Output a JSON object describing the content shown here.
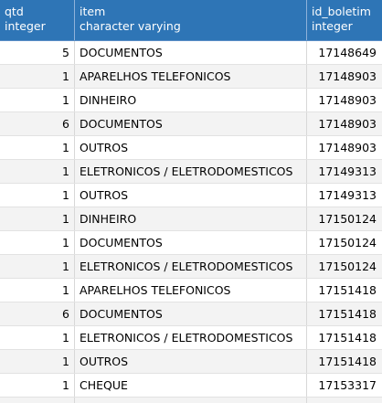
{
  "columns": [
    {
      "name": "qtd",
      "type": "integer"
    },
    {
      "name": "item",
      "type": "character varying"
    },
    {
      "name": "id_boletim",
      "type": "integer"
    }
  ],
  "rows": [
    {
      "qtd": "5",
      "item": "DOCUMENTOS",
      "id_boletim": "17148649"
    },
    {
      "qtd": "1",
      "item": "APARELHOS TELEFONICOS",
      "id_boletim": "17148903"
    },
    {
      "qtd": "1",
      "item": "DINHEIRO",
      "id_boletim": "17148903"
    },
    {
      "qtd": "6",
      "item": "DOCUMENTOS",
      "id_boletim": "17148903"
    },
    {
      "qtd": "1",
      "item": "OUTROS",
      "id_boletim": "17148903"
    },
    {
      "qtd": "1",
      "item": "ELETRONICOS / ELETRODOMESTICOS",
      "id_boletim": "17149313"
    },
    {
      "qtd": "1",
      "item": "OUTROS",
      "id_boletim": "17149313"
    },
    {
      "qtd": "1",
      "item": "DINHEIRO",
      "id_boletim": "17150124"
    },
    {
      "qtd": "1",
      "item": "DOCUMENTOS",
      "id_boletim": "17150124"
    },
    {
      "qtd": "1",
      "item": "ELETRONICOS / ELETRODOMESTICOS",
      "id_boletim": "17150124"
    },
    {
      "qtd": "1",
      "item": "APARELHOS TELEFONICOS",
      "id_boletim": "17151418"
    },
    {
      "qtd": "6",
      "item": "DOCUMENTOS",
      "id_boletim": "17151418"
    },
    {
      "qtd": "1",
      "item": "ELETRONICOS / ELETRODOMESTICOS",
      "id_boletim": "17151418"
    },
    {
      "qtd": "1",
      "item": "OUTROS",
      "id_boletim": "17151418"
    },
    {
      "qtd": "1",
      "item": "CHEQUE",
      "id_boletim": "17153317"
    }
  ],
  "colors": {
    "header_bg": "#2e75b6",
    "header_text": "#ffffff",
    "row_alt_bg": "#f3f3f3",
    "grid_line": "#d8d8d8"
  }
}
